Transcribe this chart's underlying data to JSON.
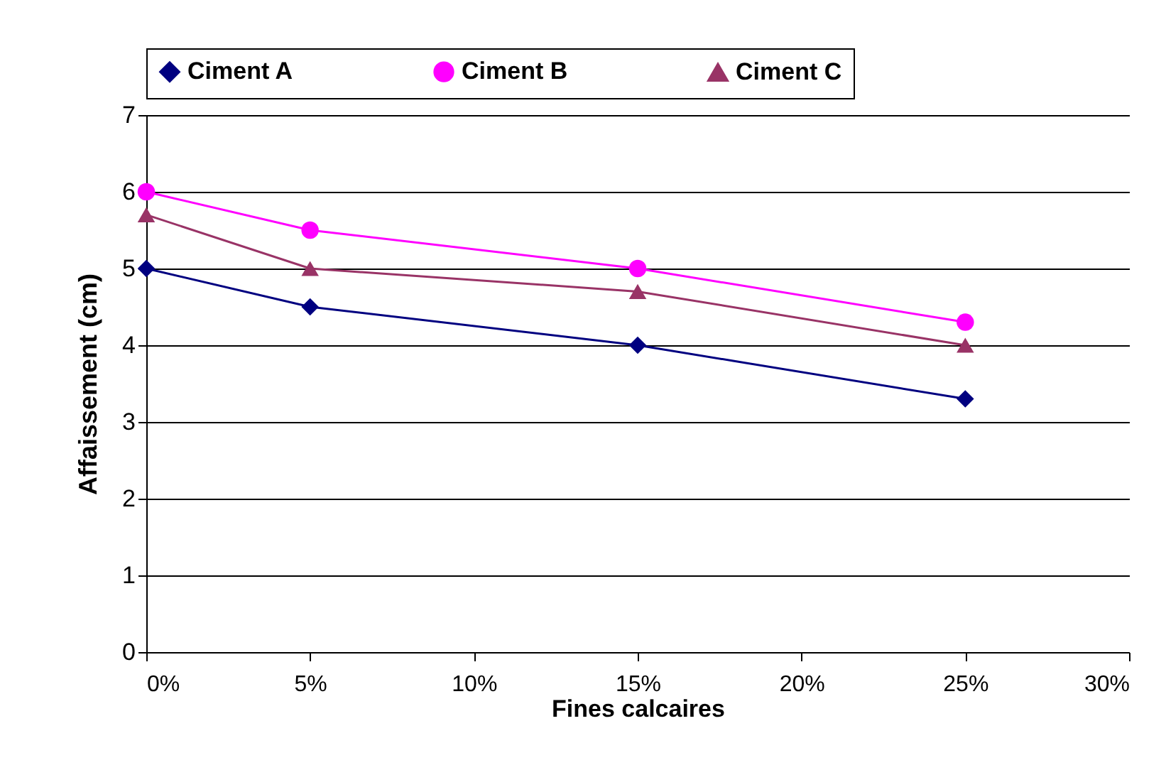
{
  "chart_data": {
    "type": "line",
    "xlabel": "Fines calcaires",
    "ylabel": "Affaissement (cm)",
    "x": [
      0,
      5,
      15,
      25
    ],
    "series": [
      {
        "name": "Ciment A",
        "color": "#000080",
        "marker": "diamond",
        "values": [
          5,
          4.5,
          4,
          3.3
        ]
      },
      {
        "name": "Ciment B",
        "color": "#ff00ff",
        "marker": "circle",
        "values": [
          6,
          5.5,
          5,
          4.3
        ]
      },
      {
        "name": "Ciment C",
        "color": "#993366",
        "marker": "triangle",
        "values": [
          5.7,
          5,
          4.7,
          4
        ]
      }
    ],
    "xlim": [
      0,
      30
    ],
    "xticks": [
      {
        "value": 0,
        "label": "0%"
      },
      {
        "value": 5,
        "label": "5%"
      },
      {
        "value": 10,
        "label": "10%"
      },
      {
        "value": 15,
        "label": "15%"
      },
      {
        "value": 20,
        "label": "20%"
      },
      {
        "value": 25,
        "label": "25%"
      },
      {
        "value": 30,
        "label": "30%"
      }
    ],
    "ylim": [
      0,
      7
    ],
    "yticks": [
      0,
      1,
      2,
      3,
      4,
      5,
      6,
      7
    ],
    "grid": "y",
    "legend": "top",
    "line_style": "solid"
  }
}
